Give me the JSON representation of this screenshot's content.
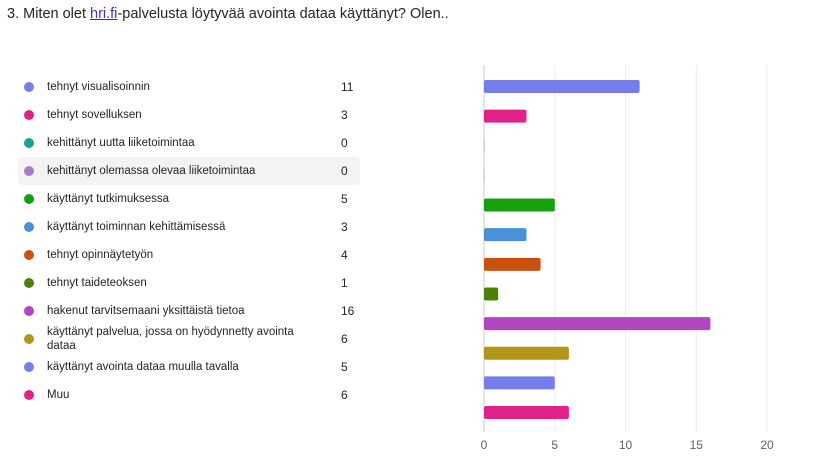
{
  "question": {
    "prefix": "3. Miten olet ",
    "link": "hri.fi",
    "suffix": "-palvelusta löytyvää avointa dataa käyttänyt? Olen.."
  },
  "chart_data": {
    "type": "bar",
    "orientation": "horizontal",
    "categories": [
      "tehnyt visualisoinnin",
      "tehnyt sovelluksen",
      "kehittänyt uutta liiketoimintaa",
      "kehittänyt olemassa olevaa liiketoimintaa",
      "käyttänyt tutkimuksessa",
      "käyttänyt toiminnan kehittämisessä",
      "tehnyt opinnäytetyön",
      "tehnyt taideteoksen",
      "hakenut tarvitsemaani yksittäistä tietoa",
      "käyttänyt palvelua, jossa on hyödynnetty avointa dataa",
      "käyttänyt avointa dataa muulla tavalla",
      "Muu"
    ],
    "values": [
      11,
      3,
      0,
      0,
      5,
      3,
      4,
      1,
      16,
      6,
      5,
      6
    ],
    "colors": [
      "#757de8",
      "#e0218a",
      "#1a9e9e",
      "#a77cce",
      "#13a10e",
      "#4a90d9",
      "#ca5010",
      "#498205",
      "#b146c2",
      "#b19619",
      "#757de8",
      "#e0218a"
    ],
    "xlim": [
      0,
      20
    ],
    "xticks": [
      "0",
      "5",
      "10",
      "15",
      "20"
    ],
    "grid": true,
    "hovered_index": 3
  }
}
